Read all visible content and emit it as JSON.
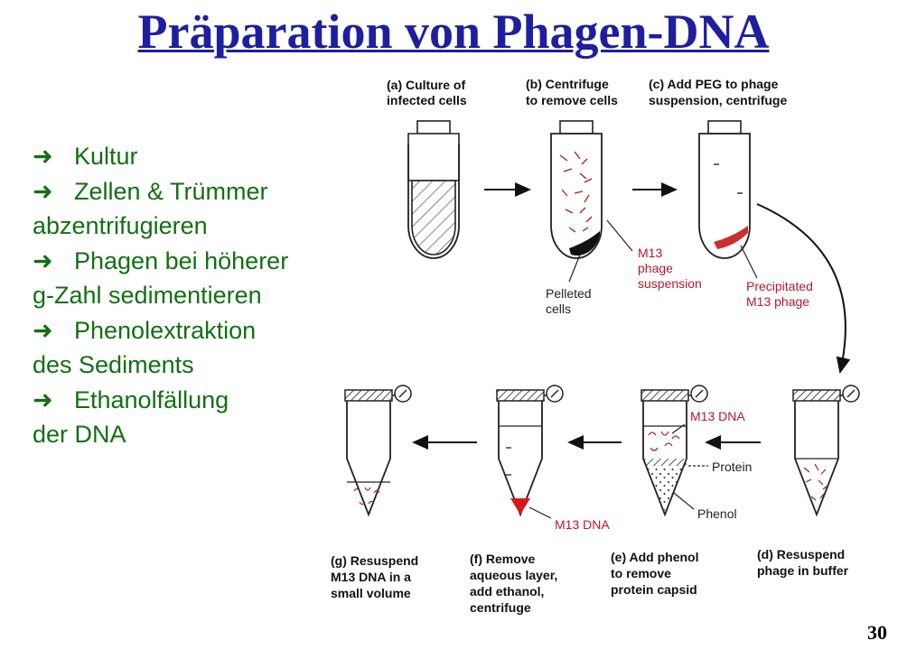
{
  "title": "Präparation von Phagen-DNA",
  "bullets": [
    {
      "line1": "Kultur"
    },
    {
      "line1": "Zellen & Trümmer",
      "line2": "abzentrifugieren"
    },
    {
      "line1": "Phagen bei höherer",
      "line2": "g-Zahl sedimentieren"
    },
    {
      "line1": "Phenolextraktion",
      "line2": "des Sediments"
    },
    {
      "line1": "Ethanolfällung",
      "line2": "der DNA"
    }
  ],
  "bullet_icon": "right-arrow-icon",
  "steps": {
    "a": {
      "l1": "(a) Culture of",
      "l2": "infected cells"
    },
    "b": {
      "l1": "(b) Centrifuge",
      "l2": "to remove cells"
    },
    "c": {
      "l1": "(c) Add PEG to phage",
      "l2": "suspension, centrifuge"
    },
    "d": {
      "l1": "(d) Resuspend",
      "l2": "phage in buffer"
    },
    "e": {
      "l1": "(e) Add phenol",
      "l2": "to remove",
      "l3": "protein capsid"
    },
    "f": {
      "l1": "(f) Remove",
      "l2": "aqueous layer,",
      "l3": "add ethanol,",
      "l4": "centrifuge"
    },
    "g": {
      "l1": "(g) Resuspend",
      "l2": "M13 DNA in a",
      "l3": "small volume"
    }
  },
  "labels": {
    "pelleted": {
      "l1": "Pelleted",
      "l2": "cells"
    },
    "m13_suspension": {
      "l1": "M13",
      "l2": "phage",
      "l3": "suspension"
    },
    "precipitated": {
      "l1": "Precipitated",
      "l2": "M13 phage"
    },
    "m13_dna_e": "M13 DNA",
    "protein": "Protein",
    "phenol": "Phenol",
    "m13_dna_f": "M13 DNA"
  },
  "page_number": "30",
  "colors": {
    "title": "#1e1ea0",
    "bullets": "#127012",
    "red_label": "#b8182a",
    "pellet_red": "#d81818"
  }
}
